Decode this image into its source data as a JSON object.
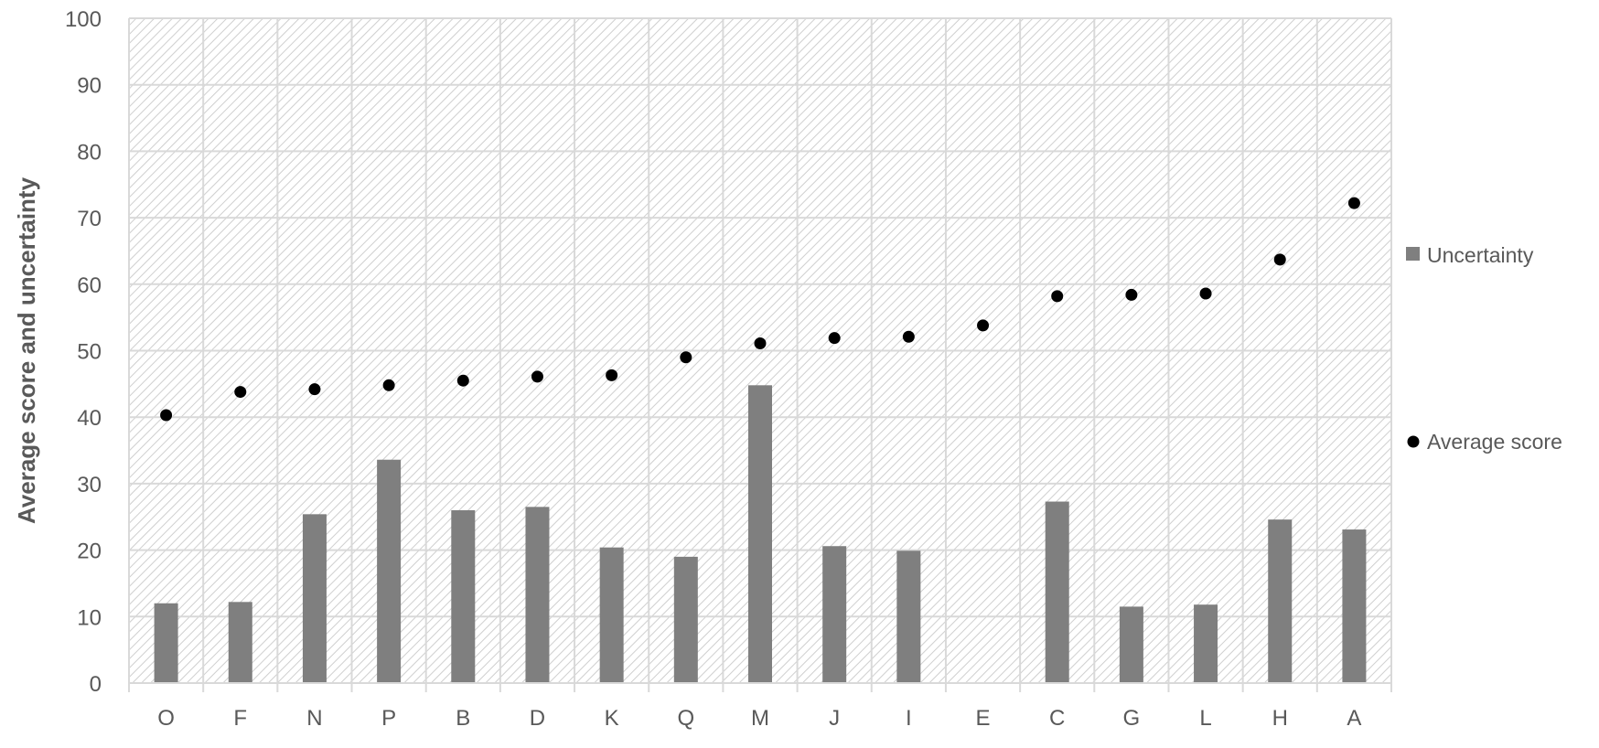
{
  "chart_data": {
    "type": "bar",
    "title": "",
    "xlabel": "",
    "ylabel": "Average score and uncertainty",
    "ylim": [
      0,
      100
    ],
    "yticks": [
      0,
      10,
      20,
      30,
      40,
      50,
      60,
      70,
      80,
      90,
      100
    ],
    "grid": true,
    "legend_position": "right",
    "categories": [
      "O",
      "F",
      "N",
      "P",
      "B",
      "D",
      "K",
      "Q",
      "M",
      "J",
      "I",
      "E",
      "C",
      "G",
      "L",
      "H",
      "A"
    ],
    "series": [
      {
        "name": "Uncertainty",
        "type": "bar",
        "color": "#7f7f7f",
        "values": [
          12,
          12.2,
          25.4,
          33.6,
          26,
          26.5,
          20.4,
          19,
          44.8,
          20.6,
          19.9,
          0,
          27.3,
          11.5,
          11.8,
          24.6,
          23.1
        ]
      },
      {
        "name": "Average score",
        "type": "scatter",
        "color": "#000000",
        "values": [
          40.3,
          43.8,
          44.2,
          44.8,
          45.5,
          46.1,
          46.3,
          49,
          51.1,
          51.9,
          52.1,
          53.8,
          58.2,
          58.4,
          58.6,
          63.7,
          72.2
        ]
      }
    ]
  }
}
